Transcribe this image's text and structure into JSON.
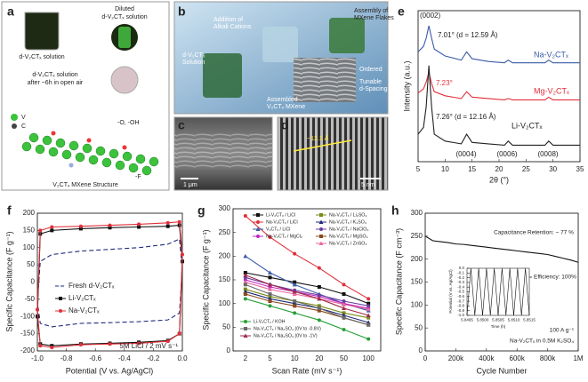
{
  "panels": {
    "a": {
      "label": "a",
      "diluted": [
        "Diluted",
        "d-V₂CTₓ solution"
      ],
      "solution": "d-V₂CTₓ solution",
      "aged": [
        "d-V₂CTₓ solution",
        "after ~6h in open air"
      ],
      "v": "V",
      "c": "C",
      "oh": "-O, -OH",
      "f": "-F",
      "structure": "V₂CTₓ MXene Structure"
    },
    "b": {
      "label": "b",
      "cations": [
        "Addition of",
        "Alkali Cations"
      ],
      "assembly": [
        "Assembly of",
        "MXene Flakes"
      ],
      "solution": [
        "d-V₂CTₓ",
        "Solution"
      ],
      "ordered": "Ordered",
      "tunable": [
        "Tunable",
        "d-Spacing"
      ],
      "assembled": [
        "Assembled",
        "V₂CTₓ MXene"
      ]
    },
    "c": {
      "label": "c",
      "scale": "1 μm"
    },
    "d": {
      "label": "d",
      "spacing": "~12.1 Å",
      "scale": "5 nm"
    }
  },
  "chart_data": [
    {
      "label": "e",
      "type": "line",
      "xlabel": "2θ (°)",
      "ylabel": "Intensity (a.u.)",
      "x": [
        5,
        6,
        6.5,
        7,
        7.5,
        8,
        10,
        13,
        14,
        15,
        18,
        21,
        21.7,
        22.5,
        26,
        28.5,
        29.2,
        30,
        33,
        35
      ],
      "xlim": [
        5,
        35
      ],
      "xticks": [
        5,
        10,
        15,
        20,
        25,
        30,
        35
      ],
      "ylim": [
        0,
        110
      ],
      "annotations": [
        "(0002)",
        "7.01° (d = 12.59 Å)",
        "7.23°",
        "7.26° (d = 12.16 Å)",
        "(0004)",
        "(0006)",
        "(0008)"
      ],
      "series": [
        {
          "name": "Na-V₂CTₓ",
          "color": "#3a5ba8",
          "values": [
            80,
            84,
            90,
            99,
            90,
            82,
            77,
            74,
            80,
            75,
            73,
            72,
            74,
            72,
            72,
            72,
            74,
            72,
            72,
            72
          ]
        },
        {
          "name": "Mg-V₂CTₓ",
          "color": "#e0303a",
          "values": [
            50,
            53,
            58,
            65,
            57,
            51,
            48,
            46,
            51,
            47,
            46,
            45,
            46,
            45,
            45,
            45,
            47,
            45,
            45,
            45
          ]
        },
        {
          "name": "Li-V₂CTₓ",
          "color": "#222222",
          "values": [
            20,
            25,
            40,
            70,
            40,
            20,
            15,
            13,
            20,
            14,
            13,
            12,
            15,
            12,
            12,
            12,
            15,
            12,
            12,
            12
          ]
        }
      ]
    },
    {
      "label": "f",
      "type": "line",
      "xlabel": "Potential (V vs. Ag/AgCl)",
      "ylabel": "Specific Capacitance (F g⁻¹)",
      "xlim": [
        -1,
        0
      ],
      "xticks": [
        {
          "value": -1,
          "label": "-1.0"
        },
        -0.8,
        -0.6,
        -0.4,
        -0.2,
        {
          "value": 0,
          "label": "0.0"
        }
      ],
      "ylim": [
        -200,
        200
      ],
      "yticks": [
        -200,
        -150,
        -100,
        -50,
        0,
        50,
        100,
        150,
        200
      ],
      "annotations": [
        "5M LiCl / 2 mV s⁻¹"
      ],
      "series": [
        {
          "name": "Fresh d-V₂CTₓ",
          "color": "#1f2a7a",
          "dash": true,
          "x": [
            -1,
            -0.98,
            -0.9,
            -0.7,
            -0.5,
            -0.3,
            -0.1,
            -0.02,
            0,
            -0.02,
            -0.1,
            -0.3,
            -0.5,
            -0.7,
            -0.9,
            -0.98,
            -1
          ],
          "values": [
            -60,
            60,
            80,
            90,
            95,
            100,
            110,
            125,
            40,
            -90,
            -110,
            -115,
            -118,
            -120,
            -130,
            -120,
            -60
          ]
        },
        {
          "name": "Li-V₂CTₓ",
          "color": "#111111",
          "marker": "square",
          "x": [
            -1,
            -0.98,
            -0.9,
            -0.7,
            -0.5,
            -0.3,
            -0.1,
            -0.02,
            0,
            -0.02,
            -0.1,
            -0.3,
            -0.5,
            -0.7,
            -0.9,
            -0.98,
            -1
          ],
          "values": [
            -100,
            140,
            150,
            155,
            158,
            160,
            162,
            165,
            60,
            -150,
            -170,
            -175,
            -178,
            -180,
            -185,
            -180,
            -100
          ]
        },
        {
          "name": "Na-V₂CTₓ",
          "color": "#e0303a",
          "marker": "circle",
          "x": [
            -1,
            -0.98,
            -0.9,
            -0.7,
            -0.5,
            -0.3,
            -0.1,
            -0.02,
            0,
            -0.02,
            -0.1,
            -0.3,
            -0.5,
            -0.7,
            -0.9,
            -0.98,
            -1
          ],
          "values": [
            -80,
            150,
            160,
            162,
            165,
            168,
            172,
            175,
            80,
            -150,
            -172,
            -178,
            -180,
            -182,
            -190,
            -185,
            -80
          ]
        }
      ]
    },
    {
      "label": "g",
      "type": "line",
      "xlabel": "Scan Rate (mV s⁻¹)",
      "ylabel": "Specific Capacitance (F g⁻¹)",
      "categories": [
        "2",
        "5",
        "10",
        "20",
        "50",
        "100"
      ],
      "ylim": [
        0,
        300
      ],
      "yticks": [
        0,
        50,
        100,
        150,
        200,
        250,
        300
      ],
      "series": [
        {
          "name": "Li-V₂CTₓ / LiCl",
          "color": "#111111",
          "marker": "square",
          "values": [
            165,
            155,
            145,
            135,
            120,
            100
          ]
        },
        {
          "name": "Na-V₂CTₓ / LiCl",
          "color": "#e0303a",
          "marker": "circle",
          "values": [
            285,
            240,
            205,
            175,
            140,
            110
          ]
        },
        {
          "name": "V₂CTₓ / LiCl",
          "color": "#3a5ba8",
          "marker": "triangle",
          "values": [
            200,
            165,
            140,
            120,
            100,
            85
          ]
        },
        {
          "name": "Na-V₂CTₓ / MgCl₂",
          "color": "#c026c0",
          "marker": "circle",
          "values": [
            150,
            135,
            125,
            115,
            100,
            90
          ]
        },
        {
          "name": "Na-V₂CTₓ / Li₂SO₄",
          "color": "#7a8a1a",
          "marker": "square",
          "values": [
            130,
            115,
            105,
            95,
            80,
            70
          ]
        },
        {
          "name": "Na-V₂CTₓ / K₂SO₄",
          "color": "#1f2a7a",
          "marker": "triangle",
          "values": [
            125,
            110,
            100,
            90,
            75,
            60
          ]
        },
        {
          "name": "Na-V₂CTₓ / NaClO₄",
          "color": "#6a3fa0",
          "marker": "circle",
          "values": [
            155,
            140,
            128,
            118,
            105,
            95
          ]
        },
        {
          "name": "Na-V₂CTₓ / MgSO₄",
          "color": "#8a4a20",
          "marker": "square",
          "values": [
            120,
            105,
            95,
            85,
            70,
            55
          ]
        },
        {
          "name": "Na-V₂CTₓ / ZnSO₄",
          "color": "#e86aa0",
          "marker": "triangle",
          "values": [
            145,
            130,
            120,
            110,
            98,
            88
          ]
        },
        {
          "name": "Li-V₂CTₓ / KOH",
          "color": "#2aa03a",
          "marker": "circle",
          "values": [
            110,
            95,
            80,
            65,
            45,
            25
          ]
        },
        {
          "name": "Na-V₂CTₓ / Na₂SO₄ (0V to -0.8V)",
          "color": "#6a6a6a",
          "marker": "square",
          "values": [
            140,
            120,
            105,
            90,
            70,
            55
          ]
        },
        {
          "name": "Na-V₂CTₓ / Na₂SO₄ (0V to -1V)",
          "color": "#a02a4a",
          "marker": "triangle",
          "values": [
            160,
            140,
            125,
            110,
            90,
            75
          ]
        }
      ]
    },
    {
      "label": "h",
      "type": "line",
      "xlabel": "Cycle Number",
      "ylabel": "Specific Capacitance (F cm⁻³)",
      "x": [
        0,
        50000,
        100000,
        150000,
        200000,
        250000,
        300000,
        350000,
        400000,
        450000,
        500000,
        550000,
        600000,
        650000,
        700000,
        750000,
        800000,
        850000,
        900000,
        950000,
        1000000
      ],
      "xlim": [
        0,
        1000000
      ],
      "xticks": [
        0,
        {
          "value": 200000,
          "label": "200k"
        },
        {
          "value": 400000,
          "label": "400k"
        },
        {
          "value": 600000,
          "label": "600k"
        },
        {
          "value": 800000,
          "label": "800k"
        },
        {
          "value": 1000000,
          "label": "1M"
        }
      ],
      "ylim": [
        0,
        300
      ],
      "yticks": [
        0,
        50,
        100,
        150,
        200,
        250,
        300
      ],
      "annotations": [
        "Capacitance Retention: ~ 77 %",
        "Efficiency: 100%",
        "100 A g⁻¹",
        "Na-V₂CTₓ in 0.5M K₂SO₄"
      ],
      "series": [
        {
          "color": "#111111",
          "values": [
            250,
            240,
            238,
            236,
            233,
            232,
            230,
            228,
            226,
            224,
            222,
            220,
            218,
            216,
            214,
            212,
            210,
            206,
            202,
            198,
            193
          ]
        }
      ]
    },
    {
      "type": "line",
      "xlabel": "Time (h)",
      "ylabel": "Potential (V vs. Ag/AgCl)",
      "x": [
        5.8495,
        5.849625,
        5.84975,
        5.849875,
        5.85,
        5.850125,
        5.85025,
        5.850375,
        5.8505,
        5.850625,
        5.85075,
        5.850875,
        5.851,
        5.851125,
        5.85125,
        5.851375,
        5.8515
      ],
      "xlim": [
        5.8495,
        5.8515
      ],
      "xticks": [
        5.8495,
        {
          "value": 5.85,
          "label": "5.8500"
        },
        5.8505,
        {
          "value": 5.851,
          "label": "5.8510"
        },
        5.8515
      ],
      "ylim": [
        -1,
        0
      ],
      "yticks": [
        {
          "value": 0,
          "label": "0.0"
        },
        -0.1,
        -0.2,
        -0.3,
        -0.4,
        -0.5,
        -0.6,
        -0.7,
        -0.8,
        -0.9,
        {
          "value": -1,
          "label": "-1.0"
        }
      ],
      "series": [
        {
          "color": "#111111",
          "values": [
            -1,
            0,
            -1,
            0,
            -1,
            0,
            -1,
            0,
            -1,
            0,
            -1,
            0,
            -1,
            0,
            -1,
            0,
            -1
          ]
        }
      ]
    }
  ]
}
